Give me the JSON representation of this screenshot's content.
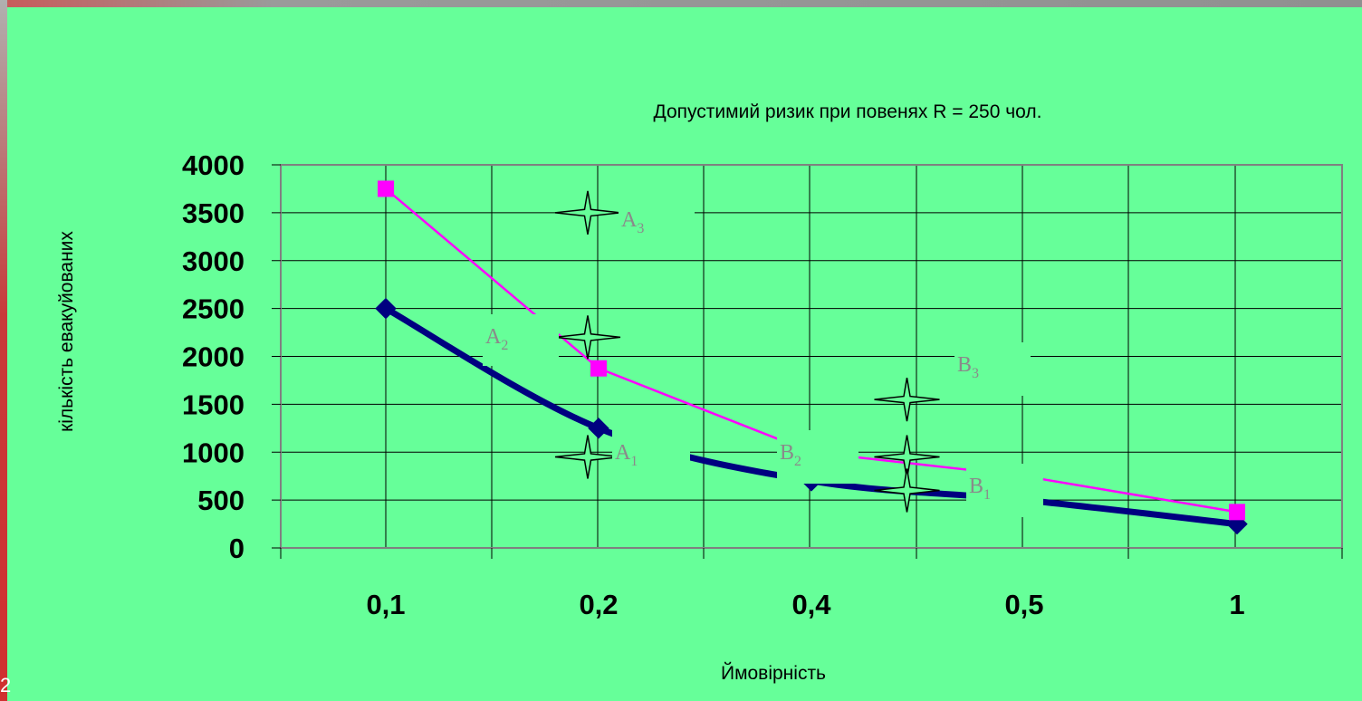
{
  "slide_number": "2",
  "chart_data": {
    "type": "line",
    "title": "Допустимий ризик при повенях R = 250 чол.",
    "xlabel": "Ймовірність",
    "ylabel": "кількість евакуйованих",
    "categories": [
      "0,1",
      "0,2",
      "0,4",
      "0,5",
      "1"
    ],
    "ylim": [
      0,
      4000
    ],
    "yticks": [
      "0",
      "500",
      "1000",
      "1500",
      "2000",
      "2500",
      "3000",
      "3500",
      "4000"
    ],
    "grid": true,
    "series": [
      {
        "values": [
          2500,
          1250,
          700,
          500,
          250
        ],
        "color": "#000080",
        "marker": "diamond"
      },
      {
        "values": [
          3750,
          1875,
          1000,
          750,
          375
        ],
        "color": "#ff00ff",
        "marker": "square"
      }
    ],
    "star_points": [
      {
        "x": 0.2,
        "y": 3500
      },
      {
        "x": 0.2,
        "y": 2200
      },
      {
        "x": 0.2,
        "y": 950
      },
      {
        "x": 0.45,
        "y": 1550
      },
      {
        "x": 0.45,
        "y": 950
      },
      {
        "x": 0.45,
        "y": 600
      }
    ],
    "annotations": [
      {
        "letter": "A",
        "index": "3"
      },
      {
        "letter": "A",
        "index": "2"
      },
      {
        "letter": "A",
        "index": "1"
      },
      {
        "letter": "B",
        "index": "2"
      },
      {
        "letter": "B",
        "index": "3"
      },
      {
        "letter": "B",
        "index": "1"
      }
    ],
    "colors": {
      "background": "#66ff99",
      "grid": "#000000",
      "label_box": "#66ff99",
      "label_text": "#8a8a8a",
      "star_fill": "#66ff99"
    }
  }
}
